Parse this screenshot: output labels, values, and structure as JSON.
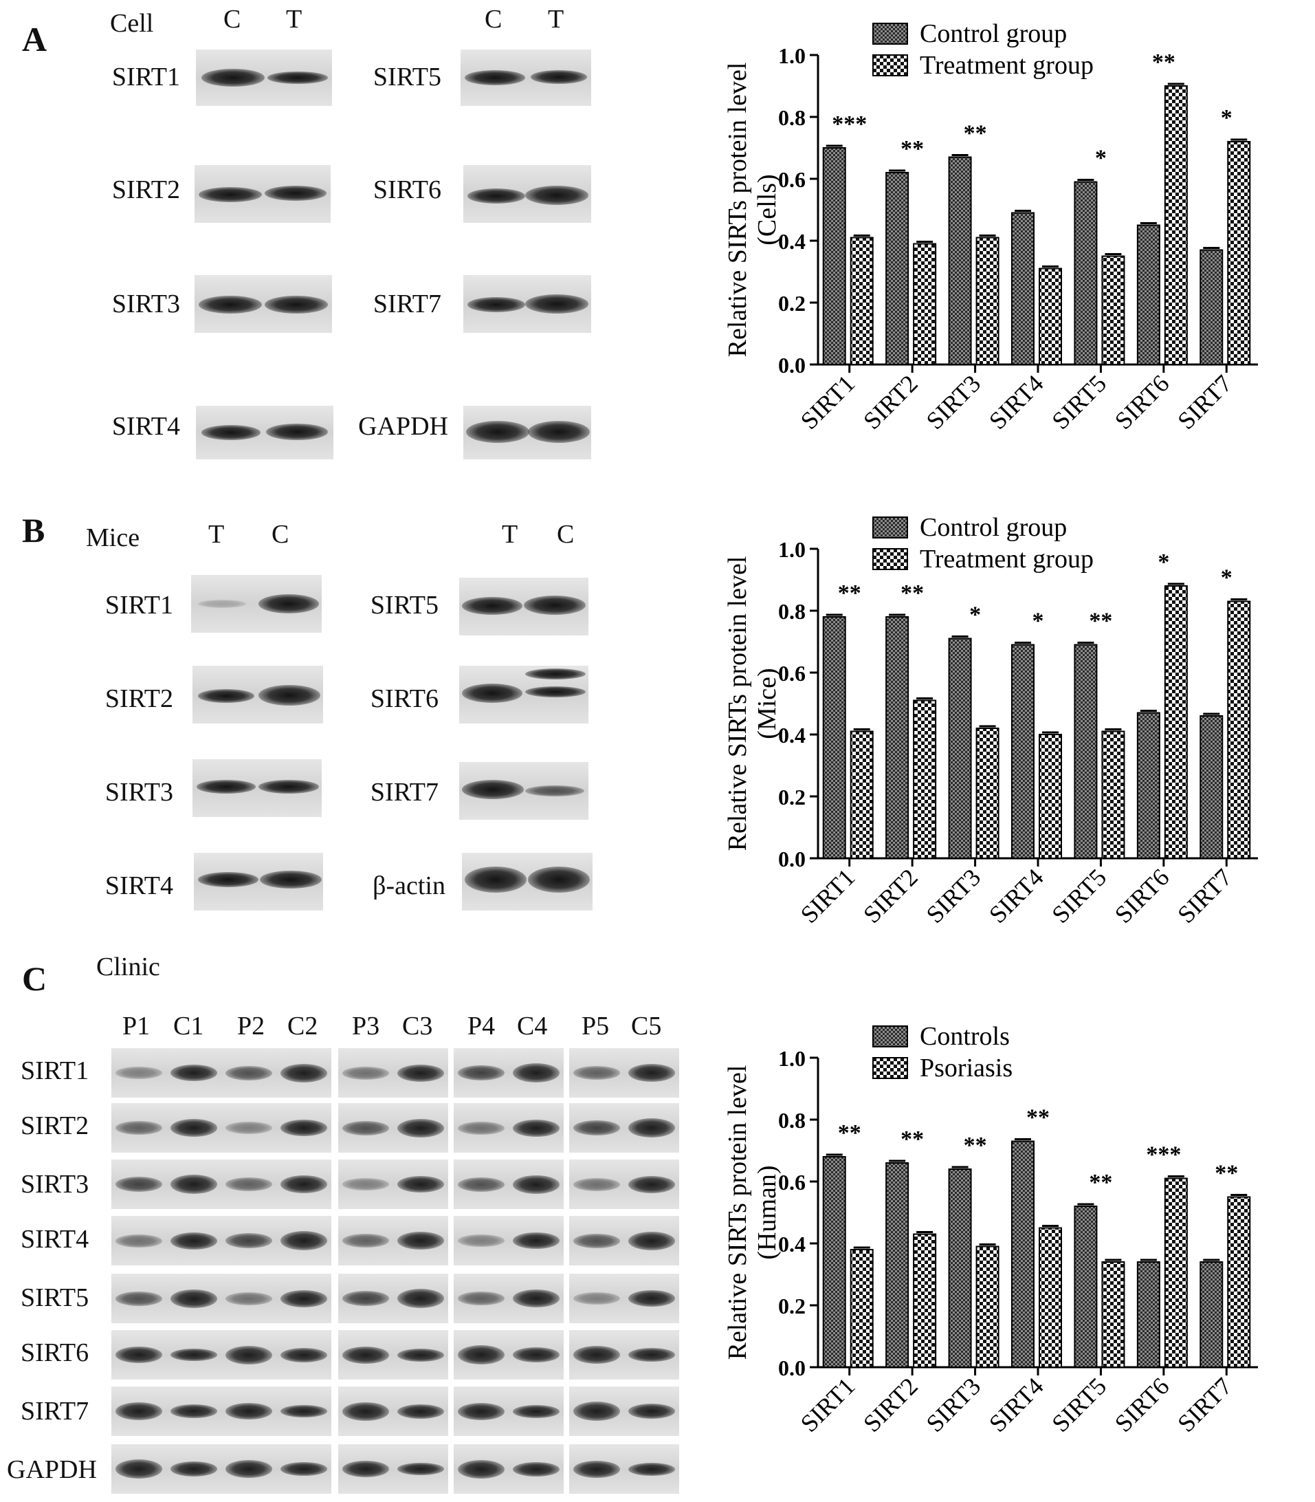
{
  "panels": {
    "A": {
      "letter": "A",
      "row_label": "Cell",
      "lanes_left": [
        "C",
        "T"
      ],
      "lanes_right": [
        "C",
        "T"
      ],
      "labels_left": [
        "SIRT1",
        "SIRT2",
        "SIRT3",
        "SIRT4"
      ],
      "labels_right": [
        "SIRT5",
        "SIRT6",
        "SIRT7",
        "GAPDH"
      ]
    },
    "B": {
      "letter": "B",
      "row_label": "Mice",
      "lanes_left": [
        "T",
        "C"
      ],
      "lanes_right": [
        "T",
        "C"
      ],
      "labels_left": [
        "SIRT1",
        "SIRT2",
        "SIRT3",
        "SIRT4"
      ],
      "labels_right": [
        "SIRT5",
        "SIRT6",
        "SIRT7",
        "β-actin"
      ]
    },
    "C": {
      "letter": "C",
      "row_label": "Clinic",
      "lanes": [
        "P1",
        "C1",
        "P2",
        "C2",
        "P3",
        "C3",
        "P4",
        "C4",
        "P5",
        "C5"
      ],
      "labels": [
        "SIRT1",
        "SIRT2",
        "SIRT3",
        "SIRT4",
        "SIRT5",
        "SIRT6",
        "SIRT7",
        "GAPDH"
      ]
    }
  },
  "chart_data": [
    {
      "type": "bar",
      "title": "",
      "categories": [
        "SIRT1",
        "SIRT2",
        "SIRT3",
        "SIRT4",
        "SIRT5",
        "SIRT6",
        "SIRT7"
      ],
      "series": [
        {
          "name": "Control group",
          "values": [
            0.7,
            0.62,
            0.67,
            0.49,
            0.59,
            0.45,
            0.37
          ]
        },
        {
          "name": "Treatment group",
          "values": [
            0.41,
            0.39,
            0.41,
            0.31,
            0.35,
            0.9,
            0.72
          ]
        }
      ],
      "significance": [
        "***",
        "**",
        "**",
        "",
        "*",
        "**",
        "*"
      ],
      "ylabel_line1": "Relative SIRTs protein level",
      "ylabel_line2": "(Cells)",
      "xlabel": "",
      "ylim": [
        0,
        1.0
      ],
      "yticks": [
        "0.0",
        "0.2",
        "0.4",
        "0.6",
        "0.8",
        "1.0"
      ],
      "grid": false,
      "legend_position": "top"
    },
    {
      "type": "bar",
      "title": "",
      "categories": [
        "SIRT1",
        "SIRT2",
        "SIRT3",
        "SIRT4",
        "SIRT5",
        "SIRT6",
        "SIRT7"
      ],
      "series": [
        {
          "name": "Control group",
          "values": [
            0.78,
            0.78,
            0.71,
            0.69,
            0.69,
            0.47,
            0.46
          ]
        },
        {
          "name": "Treatment group",
          "values": [
            0.41,
            0.51,
            0.42,
            0.4,
            0.41,
            0.88,
            0.83
          ]
        }
      ],
      "significance": [
        "**",
        "**",
        "*",
        "*",
        "**",
        "*",
        "*"
      ],
      "ylabel_line1": "Relative SIRTs protein level",
      "ylabel_line2": "(Mice)",
      "xlabel": "",
      "ylim": [
        0,
        1.0
      ],
      "yticks": [
        "0.0",
        "0.2",
        "0.4",
        "0.6",
        "0.8",
        "1.0"
      ],
      "grid": false,
      "legend_position": "top"
    },
    {
      "type": "bar",
      "title": "",
      "categories": [
        "SIRT1",
        "SIRT2",
        "SIRT3",
        "SIRT4",
        "SIRT5",
        "SIRT6",
        "SIRT7"
      ],
      "series": [
        {
          "name": "Controls",
          "values": [
            0.68,
            0.66,
            0.64,
            0.73,
            0.52,
            0.34,
            0.34
          ]
        },
        {
          "name": "Psoriasis",
          "values": [
            0.38,
            0.43,
            0.39,
            0.45,
            0.34,
            0.61,
            0.55
          ]
        }
      ],
      "significance": [
        "**",
        "**",
        "**",
        "**",
        "**",
        "***",
        "**"
      ],
      "ylabel_line1": "Relative SIRTs protein level",
      "ylabel_line2": "(Human)",
      "xlabel": "",
      "ylim": [
        0,
        1.0
      ],
      "yticks": [
        "0.0",
        "0.2",
        "0.4",
        "0.6",
        "0.8",
        "1.0"
      ],
      "grid": false,
      "legend_position": "top"
    }
  ]
}
